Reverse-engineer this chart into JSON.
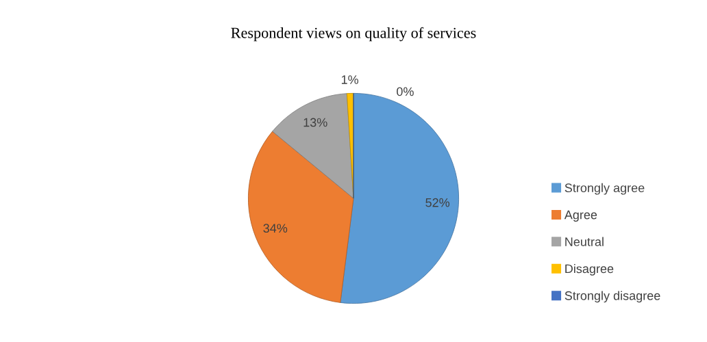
{
  "chart_data": {
    "type": "pie",
    "title": "Respondent views on quality of services",
    "categories": [
      "Strongly agree",
      "Agree",
      "Neutral",
      "Disagree",
      "Strongly disagree"
    ],
    "values": [
      52,
      34,
      13,
      1,
      0
    ],
    "colors": [
      "#5b9bd5",
      "#ed7d31",
      "#a5a5a5",
      "#ffc000",
      "#4472c4"
    ],
    "value_labels": [
      "52%",
      "34%",
      "13%",
      "1%",
      "0%"
    ],
    "legend": "right"
  }
}
